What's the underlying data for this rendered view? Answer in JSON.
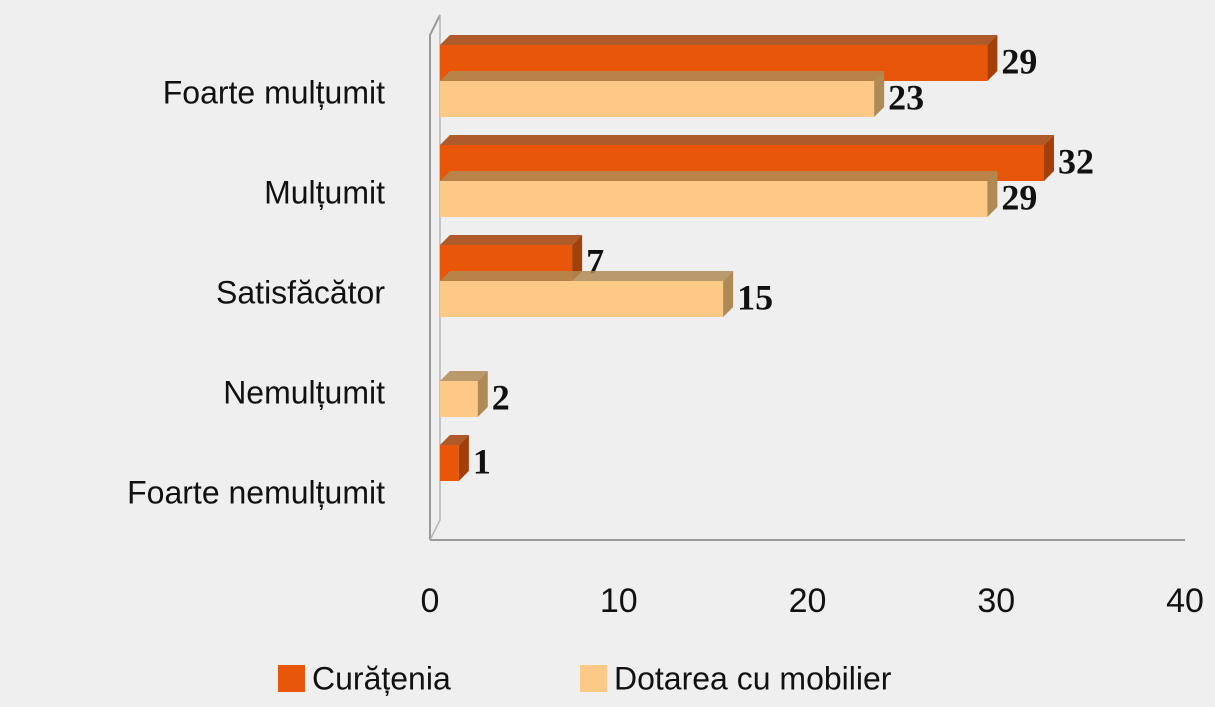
{
  "chart_data": {
    "type": "bar3d_horizontal",
    "categories": [
      "Foarte mulțumit",
      "Mulțumit",
      "Satisfăcător",
      "Nemulțumit",
      "Foarte nemulțumit"
    ],
    "series": [
      {
        "name": "Curățenia",
        "color": "#e8560a",
        "side_color": "#a33f08",
        "values": [
          29,
          32,
          7,
          null,
          1
        ]
      },
      {
        "name": "Dotarea cu mobilier",
        "color": "#fcc987",
        "side_color": "#b08a55",
        "values": [
          23,
          29,
          15,
          2,
          null
        ]
      }
    ],
    "xlim": [
      0,
      40
    ],
    "xticks": [
      0,
      10,
      20,
      30,
      40
    ],
    "grid": false,
    "legend": "bottom"
  }
}
